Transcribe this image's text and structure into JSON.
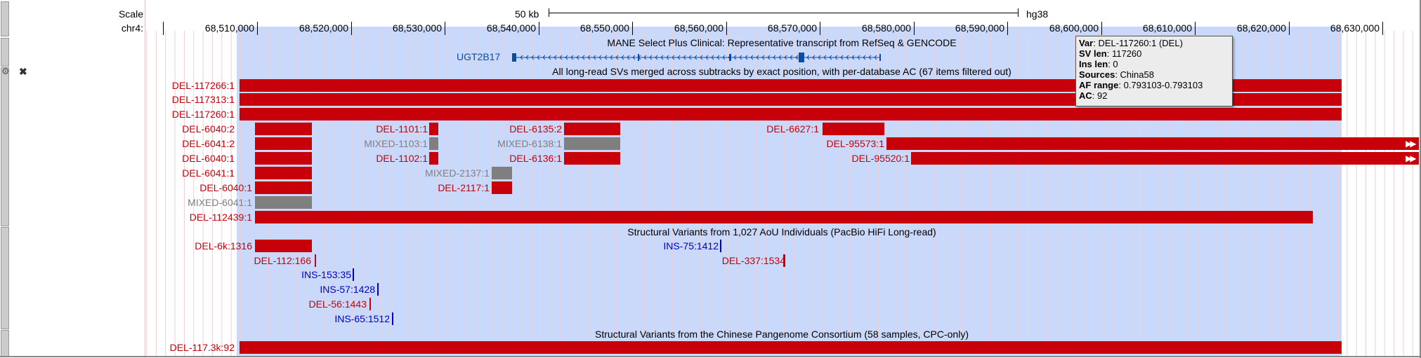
{
  "ruler": {
    "scale_label": "Scale",
    "chrom_label": "chr4:",
    "scalebar_label": "50 kb",
    "assembly": "hg38",
    "ticks": [
      "68,510,000",
      "68,520,000",
      "68,530,000",
      "68,540,000",
      "68,550,000",
      "68,560,000",
      "68,570,000",
      "68,580,000",
      "68,590,000",
      "68,600,000",
      "68,610,000",
      "68,620,000",
      "68,630,000"
    ]
  },
  "tracks": {
    "mane": {
      "title": "MANE Select Plus Clinical: Representative transcript from RefSeq & GENCODE",
      "gene": "UGT2B17"
    },
    "longread": {
      "title": "All long-read SVs merged across subtracks by exact position, with per-database AC (67 items filtered out)",
      "items": [
        "DEL-117266:1",
        "DEL-117313:1",
        "DEL-117260:1",
        "DEL-6040:2",
        "DEL-1101:1",
        "DEL-6135:2",
        "DEL-6627:1",
        "DEL-6041:2",
        "MIXED-1103:1",
        "MIXED-6138:1",
        "DEL-95573:1",
        "DEL-6040:1",
        "DEL-1102:1",
        "DEL-6136:1",
        "DEL-95520:1",
        "DEL-6041:1",
        "MIXED-2137:1",
        "DEL-6040:1",
        "DEL-2117:1",
        "MIXED-6041:1",
        "DEL-112439:1"
      ]
    },
    "aou": {
      "title": "Structural Variants from 1,027 AoU Individuals (PacBio HiFi Long-read)",
      "items": [
        "DEL-6k:1316",
        "INS-75:1412",
        "DEL-112:166",
        "DEL-337:1534",
        "INS-153:35",
        "INS-57:1428",
        "DEL-56:1443",
        "INS-65:1512"
      ]
    },
    "cpc": {
      "title": "Structural Variants from the Chinese Pangenome Consortium (58 samples, CPC-only)",
      "items": [
        "DEL-117.3k:92"
      ]
    }
  },
  "tooltip": {
    "var_key": "Var",
    "var_val": ": DEL-117260:1 (DEL)",
    "svlen_key": "SV len",
    "svlen_val": ": 117260",
    "inslen_key": "Ins len",
    "inslen_val": ": 0",
    "sources_key": "Sources",
    "sources_val": ": China58",
    "af_key": "AF range",
    "af_val": ": 0.793103-0.793103",
    "ac_key": "AC",
    "ac_val": ": 92"
  },
  "colors": {
    "highlight": "#c8d9fb",
    "del": "#c8000a",
    "mixed": "#7f7f7f",
    "ins": "#0000c8",
    "gene": "#0c4ca1"
  },
  "icons": [
    "gear-icon",
    "close-icon",
    "right-arrows-icon"
  ]
}
